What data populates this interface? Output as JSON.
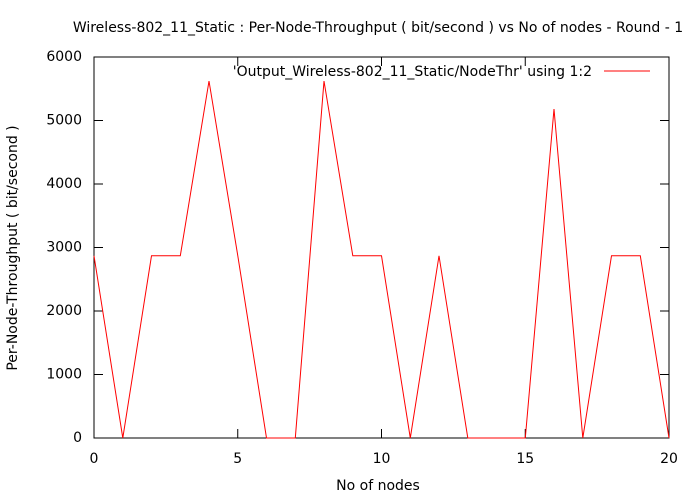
{
  "chart_data": {
    "type": "line",
    "title": "Wireless-802_11_Static : Per-Node-Throughput ( bit/second ) vs No of nodes - Round - 1",
    "xlabel": "No of nodes",
    "ylabel": "Per-Node-Throughput ( bit/second )",
    "xlim": [
      0,
      20
    ],
    "ylim": [
      0,
      6000
    ],
    "x_ticks": [
      0,
      5,
      10,
      15,
      20
    ],
    "y_ticks": [
      0,
      1000,
      2000,
      3000,
      4000,
      5000,
      6000
    ],
    "grid": false,
    "legend_position": "top-right",
    "series": [
      {
        "name": "'Output_Wireless-802_11_Static/NodeThr' using 1:2",
        "color": "#ff0000",
        "x": [
          0,
          1,
          2,
          3,
          4,
          5,
          6,
          7,
          8,
          9,
          10,
          11,
          12,
          13,
          14,
          15,
          16,
          17,
          18,
          19,
          20
        ],
        "y": [
          2870,
          0,
          2870,
          2870,
          5620,
          2870,
          0,
          0,
          5620,
          2870,
          2870,
          0,
          2870,
          0,
          0,
          0,
          5180,
          0,
          2870,
          2870,
          0
        ]
      }
    ]
  }
}
